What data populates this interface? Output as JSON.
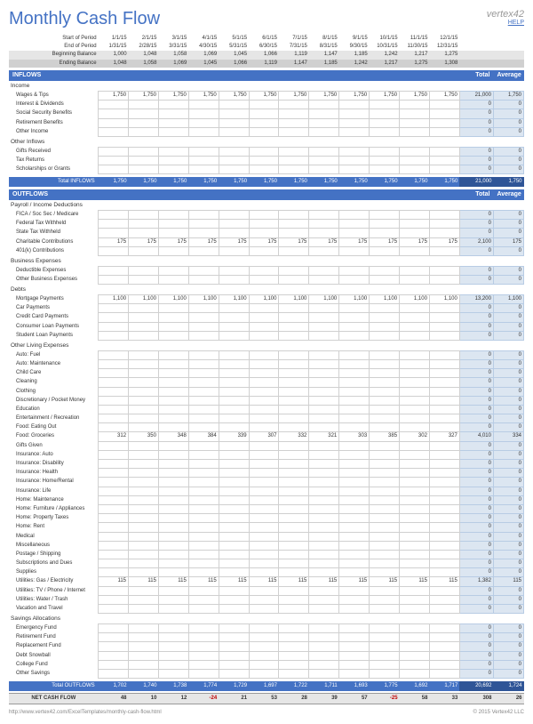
{
  "title": "Monthly Cash Flow",
  "brand_logo": "vertex42",
  "brand_help": "HELP",
  "period": {
    "start_label": "Start of Period",
    "end_label": "End of Period",
    "start": [
      "1/1/15",
      "2/1/15",
      "3/1/15",
      "4/1/15",
      "5/1/15",
      "6/1/15",
      "7/1/15",
      "8/1/15",
      "9/1/15",
      "10/1/15",
      "11/1/15",
      "12/1/15"
    ],
    "end": [
      "1/31/15",
      "2/28/15",
      "3/31/15",
      "4/30/15",
      "5/31/15",
      "6/30/15",
      "7/31/15",
      "8/31/15",
      "9/30/15",
      "10/31/15",
      "11/30/15",
      "12/31/15"
    ]
  },
  "balance": {
    "begin_label": "Beginning Balance",
    "end_label": "Ending Balance",
    "begin": [
      "1,000",
      "1,048",
      "1,058",
      "1,069",
      "1,045",
      "1,066",
      "1,119",
      "1,147",
      "1,185",
      "1,242",
      "1,217",
      "1,275"
    ],
    "end_": [
      "1,048",
      "1,058",
      "1,069",
      "1,045",
      "1,066",
      "1,119",
      "1,147",
      "1,185",
      "1,242",
      "1,217",
      "1,275",
      "1,308"
    ]
  },
  "inflows_header": "INFLOWS",
  "outflows_header": "OUTFLOWS",
  "total_label": "Total",
  "average_label": "Average",
  "inflows": [
    {
      "type": "cat",
      "label": "Income"
    },
    {
      "type": "row",
      "label": "Wages & Tips",
      "v": [
        "1,750",
        "1,750",
        "1,750",
        "1,750",
        "1,750",
        "1,750",
        "1,750",
        "1,750",
        "1,750",
        "1,750",
        "1,750",
        "1,750"
      ],
      "t": "21,000",
      "a": "1,750"
    },
    {
      "type": "row",
      "label": "Interest & Dividends",
      "v": [
        "",
        "",
        "",
        "",
        "",
        "",
        "",
        "",
        "",
        "",
        "",
        ""
      ],
      "t": "0",
      "a": "0"
    },
    {
      "type": "row",
      "label": "Social Security Benefits",
      "v": [
        "",
        "",
        "",
        "",
        "",
        "",
        "",
        "",
        "",
        "",
        "",
        ""
      ],
      "t": "0",
      "a": "0"
    },
    {
      "type": "row",
      "label": "Retirement Benefits",
      "v": [
        "",
        "",
        "",
        "",
        "",
        "",
        "",
        "",
        "",
        "",
        "",
        ""
      ],
      "t": "0",
      "a": "0"
    },
    {
      "type": "row",
      "label": "Other Income",
      "v": [
        "",
        "",
        "",
        "",
        "",
        "",
        "",
        "",
        "",
        "",
        "",
        ""
      ],
      "t": "0",
      "a": "0"
    },
    {
      "type": "cat",
      "label": "Other Inflows"
    },
    {
      "type": "row",
      "label": "Gifts Received",
      "v": [
        "",
        "",
        "",
        "",
        "",
        "",
        "",
        "",
        "",
        "",
        "",
        ""
      ],
      "t": "0",
      "a": "0"
    },
    {
      "type": "row",
      "label": "Tax Returns",
      "v": [
        "",
        "",
        "",
        "",
        "",
        "",
        "",
        "",
        "",
        "",
        "",
        ""
      ],
      "t": "0",
      "a": "0"
    },
    {
      "type": "row",
      "label": "Scholarships or Grants",
      "v": [
        "",
        "",
        "",
        "",
        "",
        "",
        "",
        "",
        "",
        "",
        "",
        ""
      ],
      "t": "0",
      "a": "0"
    }
  ],
  "inflows_total": {
    "label": "Total INFLOWS",
    "v": [
      "1,750",
      "1,750",
      "1,750",
      "1,750",
      "1,750",
      "1,750",
      "1,750",
      "1,750",
      "1,750",
      "1,750",
      "1,750",
      "1,750"
    ],
    "t": "21,000",
    "a": "1,750"
  },
  "outflows": [
    {
      "type": "cat",
      "label": "Payroll / Income Deductions"
    },
    {
      "type": "row",
      "label": "FICA / Soc Sec / Medicare",
      "v": [
        "",
        "",
        "",
        "",
        "",
        "",
        "",
        "",
        "",
        "",
        "",
        ""
      ],
      "t": "0",
      "a": "0"
    },
    {
      "type": "row",
      "label": "Federal Tax Withheld",
      "v": [
        "",
        "",
        "",
        "",
        "",
        "",
        "",
        "",
        "",
        "",
        "",
        ""
      ],
      "t": "0",
      "a": "0"
    },
    {
      "type": "row",
      "label": "State Tax Withheld",
      "v": [
        "",
        "",
        "",
        "",
        "",
        "",
        "",
        "",
        "",
        "",
        "",
        ""
      ],
      "t": "0",
      "a": "0"
    },
    {
      "type": "row",
      "label": "Charitable Contributions",
      "v": [
        "175",
        "175",
        "175",
        "175",
        "175",
        "175",
        "175",
        "175",
        "175",
        "175",
        "175",
        "175"
      ],
      "t": "2,100",
      "a": "175"
    },
    {
      "type": "row",
      "label": "401(k) Contributions",
      "v": [
        "",
        "",
        "",
        "",
        "",
        "",
        "",
        "",
        "",
        "",
        "",
        ""
      ],
      "t": "0",
      "a": "0"
    },
    {
      "type": "cat",
      "label": "Business Expenses"
    },
    {
      "type": "row",
      "label": "Deductible Expenses",
      "v": [
        "",
        "",
        "",
        "",
        "",
        "",
        "",
        "",
        "",
        "",
        "",
        ""
      ],
      "t": "0",
      "a": "0"
    },
    {
      "type": "row",
      "label": "Other Business Expenses",
      "v": [
        "",
        "",
        "",
        "",
        "",
        "",
        "",
        "",
        "",
        "",
        "",
        ""
      ],
      "t": "0",
      "a": "0"
    },
    {
      "type": "cat",
      "label": "Debts"
    },
    {
      "type": "row",
      "label": "Mortgage Payments",
      "v": [
        "1,100",
        "1,100",
        "1,100",
        "1,100",
        "1,100",
        "1,100",
        "1,100",
        "1,100",
        "1,100",
        "1,100",
        "1,100",
        "1,100"
      ],
      "t": "13,200",
      "a": "1,100"
    },
    {
      "type": "row",
      "label": "Car Payments",
      "v": [
        "",
        "",
        "",
        "",
        "",
        "",
        "",
        "",
        "",
        "",
        "",
        ""
      ],
      "t": "0",
      "a": "0"
    },
    {
      "type": "row",
      "label": "Credit Card Payments",
      "v": [
        "",
        "",
        "",
        "",
        "",
        "",
        "",
        "",
        "",
        "",
        "",
        ""
      ],
      "t": "0",
      "a": "0"
    },
    {
      "type": "row",
      "label": "Consumer Loan Payments",
      "v": [
        "",
        "",
        "",
        "",
        "",
        "",
        "",
        "",
        "",
        "",
        "",
        ""
      ],
      "t": "0",
      "a": "0"
    },
    {
      "type": "row",
      "label": "Student Loan Payments",
      "v": [
        "",
        "",
        "",
        "",
        "",
        "",
        "",
        "",
        "",
        "",
        "",
        ""
      ],
      "t": "0",
      "a": "0"
    },
    {
      "type": "cat",
      "label": "Other Living Expenses"
    },
    {
      "type": "row",
      "label": "Auto: Fuel",
      "v": [
        "",
        "",
        "",
        "",
        "",
        "",
        "",
        "",
        "",
        "",
        "",
        ""
      ],
      "t": "0",
      "a": "0"
    },
    {
      "type": "row",
      "label": "Auto: Maintenance",
      "v": [
        "",
        "",
        "",
        "",
        "",
        "",
        "",
        "",
        "",
        "",
        "",
        ""
      ],
      "t": "0",
      "a": "0"
    },
    {
      "type": "row",
      "label": "Child Care",
      "v": [
        "",
        "",
        "",
        "",
        "",
        "",
        "",
        "",
        "",
        "",
        "",
        ""
      ],
      "t": "0",
      "a": "0"
    },
    {
      "type": "row",
      "label": "Cleaning",
      "v": [
        "",
        "",
        "",
        "",
        "",
        "",
        "",
        "",
        "",
        "",
        "",
        ""
      ],
      "t": "0",
      "a": "0"
    },
    {
      "type": "row",
      "label": "Clothing",
      "v": [
        "",
        "",
        "",
        "",
        "",
        "",
        "",
        "",
        "",
        "",
        "",
        ""
      ],
      "t": "0",
      "a": "0"
    },
    {
      "type": "row",
      "label": "Discretionary / Pocket Money",
      "v": [
        "",
        "",
        "",
        "",
        "",
        "",
        "",
        "",
        "",
        "",
        "",
        ""
      ],
      "t": "0",
      "a": "0"
    },
    {
      "type": "row",
      "label": "Education",
      "v": [
        "",
        "",
        "",
        "",
        "",
        "",
        "",
        "",
        "",
        "",
        "",
        ""
      ],
      "t": "0",
      "a": "0"
    },
    {
      "type": "row",
      "label": "Entertainment / Recreation",
      "v": [
        "",
        "",
        "",
        "",
        "",
        "",
        "",
        "",
        "",
        "",
        "",
        ""
      ],
      "t": "0",
      "a": "0"
    },
    {
      "type": "row",
      "label": "Food: Eating Out",
      "v": [
        "",
        "",
        "",
        "",
        "",
        "",
        "",
        "",
        "",
        "",
        "",
        ""
      ],
      "t": "0",
      "a": "0"
    },
    {
      "type": "row",
      "label": "Food: Groceries",
      "v": [
        "312",
        "350",
        "348",
        "384",
        "339",
        "307",
        "332",
        "321",
        "303",
        "385",
        "302",
        "327"
      ],
      "t": "4,010",
      "a": "334"
    },
    {
      "type": "row",
      "label": "Gifts Given",
      "v": [
        "",
        "",
        "",
        "",
        "",
        "",
        "",
        "",
        "",
        "",
        "",
        ""
      ],
      "t": "0",
      "a": "0"
    },
    {
      "type": "row",
      "label": "Insurance: Auto",
      "v": [
        "",
        "",
        "",
        "",
        "",
        "",
        "",
        "",
        "",
        "",
        "",
        ""
      ],
      "t": "0",
      "a": "0"
    },
    {
      "type": "row",
      "label": "Insurance: Disability",
      "v": [
        "",
        "",
        "",
        "",
        "",
        "",
        "",
        "",
        "",
        "",
        "",
        ""
      ],
      "t": "0",
      "a": "0"
    },
    {
      "type": "row",
      "label": "Insurance: Health",
      "v": [
        "",
        "",
        "",
        "",
        "",
        "",
        "",
        "",
        "",
        "",
        "",
        ""
      ],
      "t": "0",
      "a": "0"
    },
    {
      "type": "row",
      "label": "Insurance: Home/Rental",
      "v": [
        "",
        "",
        "",
        "",
        "",
        "",
        "",
        "",
        "",
        "",
        "",
        ""
      ],
      "t": "0",
      "a": "0"
    },
    {
      "type": "row",
      "label": "Insurance: Life",
      "v": [
        "",
        "",
        "",
        "",
        "",
        "",
        "",
        "",
        "",
        "",
        "",
        ""
      ],
      "t": "0",
      "a": "0"
    },
    {
      "type": "row",
      "label": "Home: Maintenance",
      "v": [
        "",
        "",
        "",
        "",
        "",
        "",
        "",
        "",
        "",
        "",
        "",
        ""
      ],
      "t": "0",
      "a": "0"
    },
    {
      "type": "row",
      "label": "Home: Furniture / Appliances",
      "v": [
        "",
        "",
        "",
        "",
        "",
        "",
        "",
        "",
        "",
        "",
        "",
        ""
      ],
      "t": "0",
      "a": "0"
    },
    {
      "type": "row",
      "label": "Home: Property Taxes",
      "v": [
        "",
        "",
        "",
        "",
        "",
        "",
        "",
        "",
        "",
        "",
        "",
        ""
      ],
      "t": "0",
      "a": "0"
    },
    {
      "type": "row",
      "label": "Home: Rent",
      "v": [
        "",
        "",
        "",
        "",
        "",
        "",
        "",
        "",
        "",
        "",
        "",
        ""
      ],
      "t": "0",
      "a": "0"
    },
    {
      "type": "row",
      "label": "Medical",
      "v": [
        "",
        "",
        "",
        "",
        "",
        "",
        "",
        "",
        "",
        "",
        "",
        ""
      ],
      "t": "0",
      "a": "0"
    },
    {
      "type": "row",
      "label": "Miscellaneous",
      "v": [
        "",
        "",
        "",
        "",
        "",
        "",
        "",
        "",
        "",
        "",
        "",
        ""
      ],
      "t": "0",
      "a": "0"
    },
    {
      "type": "row",
      "label": "Postage / Shipping",
      "v": [
        "",
        "",
        "",
        "",
        "",
        "",
        "",
        "",
        "",
        "",
        "",
        ""
      ],
      "t": "0",
      "a": "0"
    },
    {
      "type": "row",
      "label": "Subscriptions and Dues",
      "v": [
        "",
        "",
        "",
        "",
        "",
        "",
        "",
        "",
        "",
        "",
        "",
        ""
      ],
      "t": "0",
      "a": "0"
    },
    {
      "type": "row",
      "label": "Supplies",
      "v": [
        "",
        "",
        "",
        "",
        "",
        "",
        "",
        "",
        "",
        "",
        "",
        ""
      ],
      "t": "0",
      "a": "0"
    },
    {
      "type": "row",
      "label": "Utilities: Gas / Electricity",
      "v": [
        "115",
        "115",
        "115",
        "115",
        "115",
        "115",
        "115",
        "115",
        "115",
        "115",
        "115",
        "115"
      ],
      "t": "1,382",
      "a": "115"
    },
    {
      "type": "row",
      "label": "Utilities: TV / Phone / Internet",
      "v": [
        "",
        "",
        "",
        "",
        "",
        "",
        "",
        "",
        "",
        "",
        "",
        ""
      ],
      "t": "0",
      "a": "0"
    },
    {
      "type": "row",
      "label": "Utilities: Water / Trash",
      "v": [
        "",
        "",
        "",
        "",
        "",
        "",
        "",
        "",
        "",
        "",
        "",
        ""
      ],
      "t": "0",
      "a": "0"
    },
    {
      "type": "row",
      "label": "Vacation and Travel",
      "v": [
        "",
        "",
        "",
        "",
        "",
        "",
        "",
        "",
        "",
        "",
        "",
        ""
      ],
      "t": "0",
      "a": "0"
    },
    {
      "type": "cat",
      "label": "Savings Allocations"
    },
    {
      "type": "row",
      "label": "Emergency Fund",
      "v": [
        "",
        "",
        "",
        "",
        "",
        "",
        "",
        "",
        "",
        "",
        "",
        ""
      ],
      "t": "0",
      "a": "0"
    },
    {
      "type": "row",
      "label": "Retirement Fund",
      "v": [
        "",
        "",
        "",
        "",
        "",
        "",
        "",
        "",
        "",
        "",
        "",
        ""
      ],
      "t": "0",
      "a": "0"
    },
    {
      "type": "row",
      "label": "Replacement Fund",
      "v": [
        "",
        "",
        "",
        "",
        "",
        "",
        "",
        "",
        "",
        "",
        "",
        ""
      ],
      "t": "0",
      "a": "0"
    },
    {
      "type": "row",
      "label": "Debt Snowball",
      "v": [
        "",
        "",
        "",
        "",
        "",
        "",
        "",
        "",
        "",
        "",
        "",
        ""
      ],
      "t": "0",
      "a": "0"
    },
    {
      "type": "row",
      "label": "College Fund",
      "v": [
        "",
        "",
        "",
        "",
        "",
        "",
        "",
        "",
        "",
        "",
        "",
        ""
      ],
      "t": "0",
      "a": "0"
    },
    {
      "type": "row",
      "label": "Other Savings",
      "v": [
        "",
        "",
        "",
        "",
        "",
        "",
        "",
        "",
        "",
        "",
        "",
        ""
      ],
      "t": "0",
      "a": "0"
    }
  ],
  "outflows_total": {
    "label": "Total OUTFLOWS",
    "v": [
      "1,702",
      "1,740",
      "1,738",
      "1,774",
      "1,729",
      "1,697",
      "1,722",
      "1,711",
      "1,693",
      "1,775",
      "1,692",
      "1,717"
    ],
    "t": "20,692",
    "a": "1,724"
  },
  "net": {
    "label": "NET CASH FLOW",
    "v": [
      "48",
      "10",
      "12",
      "-24",
      "21",
      "53",
      "28",
      "39",
      "57",
      "-25",
      "58",
      "33"
    ],
    "t": "308",
    "a": "26"
  },
  "footer_url": "http://www.vertex42.com/ExcelTemplates/monthly-cash-flow.html",
  "footer_copyright": "© 2015 Vertex42 LLC"
}
